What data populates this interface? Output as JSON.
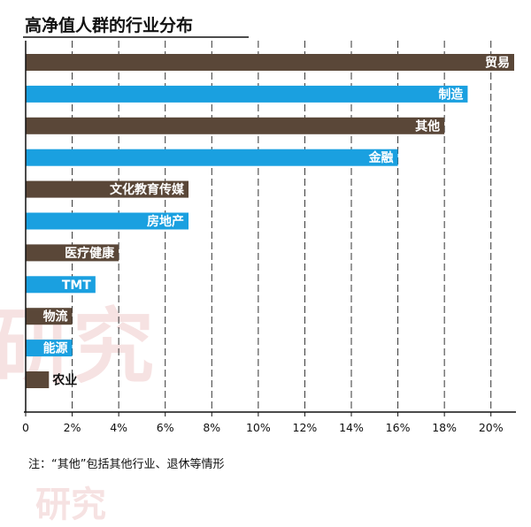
{
  "chart_data": {
    "type": "bar",
    "orientation": "horizontal",
    "title": "高净值人群的行业分布",
    "categories": [
      "贸易",
      "制造",
      "其他",
      "金融",
      "文化教育传媒",
      "房地产",
      "医疗健康",
      "TMT",
      "物流",
      "能源",
      "农业"
    ],
    "values": [
      21,
      19,
      18,
      16,
      7,
      7,
      4,
      3,
      2,
      2,
      1
    ],
    "bar_colors": [
      "#5a4738",
      "#1aa0e0",
      "#5a4738",
      "#1aa0e0",
      "#5a4738",
      "#1aa0e0",
      "#5a4738",
      "#1aa0e0",
      "#5a4738",
      "#1aa0e0",
      "#5a4738"
    ],
    "xlim": [
      0,
      21
    ],
    "xticks": [
      0,
      2,
      4,
      6,
      8,
      10,
      12,
      14,
      16,
      18,
      20
    ],
    "xtick_labels": [
      "0",
      "2%",
      "4%",
      "6%",
      "8%",
      "10%",
      "12%",
      "14%",
      "16%",
      "18%",
      "20%"
    ],
    "grid": "vertical dashed",
    "xlabel": "",
    "ylabel": ""
  },
  "note": "注：“其他”包括其他行业、退休等情形",
  "watermark": {
    "big": "研究",
    "small": "研究"
  }
}
